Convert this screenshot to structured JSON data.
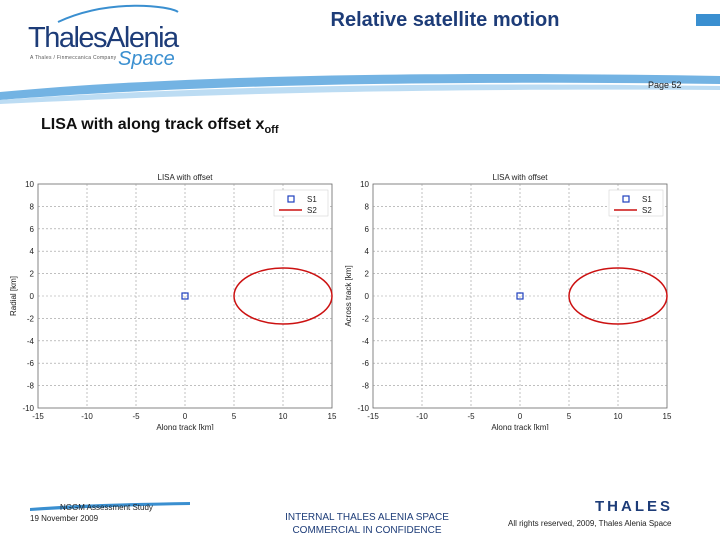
{
  "header": {
    "logo_name": "ThalesAlenia",
    "logo_tagline": "A Thales / Finmeccanica Company",
    "logo_space": "Space",
    "title": "Relative satellite motion",
    "page": "Page 52"
  },
  "slide": {
    "subtitle": "LISA with along track offset x",
    "subtitle_sub": "off"
  },
  "chart_data": [
    {
      "type": "scatter",
      "title": "LISA with offset",
      "xlabel": "Along track [km]",
      "ylabel": "Radial [km]",
      "xlim": [
        -15,
        15
      ],
      "ylim": [
        -10,
        10
      ],
      "xticks": [
        "-15",
        "-10",
        "-5",
        "0",
        "5",
        "10",
        "15"
      ],
      "yticks": [
        "10",
        "8",
        "6",
        "4",
        "2",
        "0",
        "-2",
        "-4",
        "-6",
        "-8",
        "-10"
      ],
      "grid": true,
      "legend_position": "top-right",
      "series": [
        {
          "name": "S1",
          "marker": "square",
          "color": "#1f3fbf",
          "points": [
            [
              0,
              0
            ]
          ]
        },
        {
          "name": "S2",
          "style": "line",
          "color": "#cc1111",
          "ellipse": {
            "cx": 10,
            "cy": 0,
            "rx": 5,
            "ry": 2.5
          }
        }
      ]
    },
    {
      "type": "scatter",
      "title": "LISA with offset",
      "xlabel": "Along track [km]",
      "ylabel": "Across track [km]",
      "xlim": [
        -15,
        15
      ],
      "ylim": [
        -10,
        10
      ],
      "xticks": [
        "-15",
        "-10",
        "-5",
        "0",
        "5",
        "10",
        "15"
      ],
      "yticks": [
        "10",
        "8",
        "6",
        "4",
        "2",
        "0",
        "-2",
        "-4",
        "-6",
        "-8",
        "-10"
      ],
      "grid": true,
      "legend_position": "top-right",
      "series": [
        {
          "name": "S1",
          "marker": "square",
          "color": "#1f3fbf",
          "points": [
            [
              0,
              0
            ]
          ]
        },
        {
          "name": "S2",
          "style": "line",
          "color": "#cc1111",
          "ellipse": {
            "cx": 10,
            "cy": 0,
            "rx": 5,
            "ry": 2.5
          }
        }
      ]
    }
  ],
  "footer": {
    "study": "NGGM Assessment Study",
    "date": "19 November 2009",
    "confidential_line1": "INTERNAL THALES ALENIA SPACE",
    "confidential_line2": "COMMERCIAL IN CONFIDENCE",
    "rights": "All rights reserved, 2009, Thales Alenia Space",
    "company_logo": "THALES"
  },
  "colors": {
    "brand_blue": "#1d3c78",
    "accent_blue": "#3a8fd0",
    "series_s1": "#1f3fbf",
    "series_s2": "#cc1111"
  }
}
